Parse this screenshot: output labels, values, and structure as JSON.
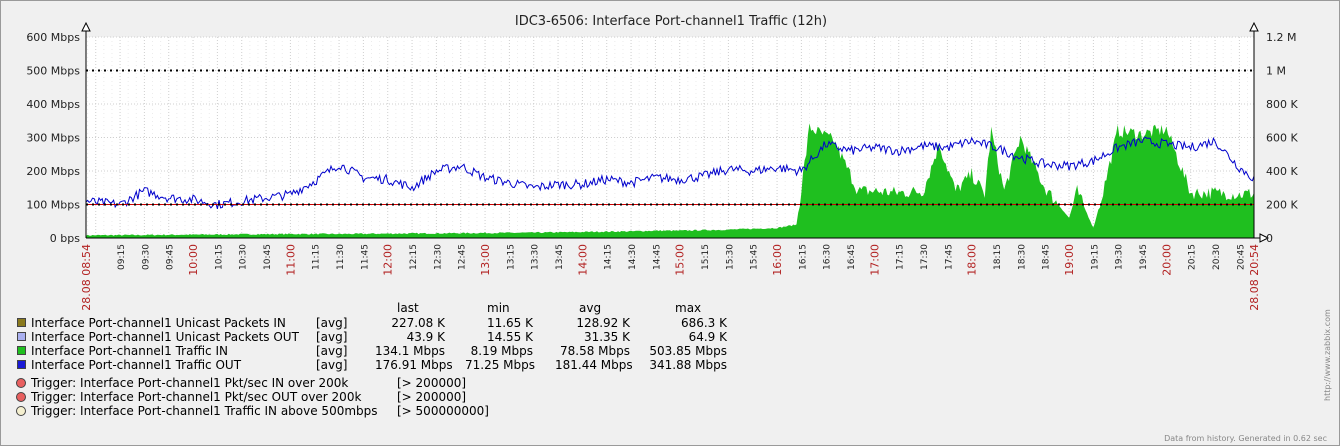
{
  "title": "IDC3-6506: Interface Port-channel1 Traffic  (12h)",
  "chart_data": {
    "type": "area",
    "title": "IDC3-6506: Interface Port-channel1 Traffic  (12h)",
    "x_start": "08-28 08:54",
    "x_end": "08-28 20:54",
    "xlabel": "",
    "ylabel": "",
    "left_axis": {
      "unit": "bps",
      "ylim": [
        0,
        600
      ],
      "ticks": [
        "0 bps",
        "100 Mbps",
        "200 Mbps",
        "300 Mbps",
        "400 Mbps",
        "500 Mbps",
        "600 Mbps"
      ]
    },
    "right_axis": {
      "unit": "packets/sec",
      "ylim": [
        0,
        1200000
      ],
      "ticks": [
        "0",
        "200 K",
        "400 K",
        "600 K",
        "800 K",
        "1 M",
        "1.2 M"
      ]
    },
    "x_tick_labels": [
      "09:15",
      "09:30",
      "09:45",
      "10:00",
      "10:15",
      "10:30",
      "10:45",
      "11:00",
      "11:15",
      "11:30",
      "11:45",
      "12:00",
      "12:15",
      "12:30",
      "12:45",
      "13:00",
      "13:15",
      "13:30",
      "13:45",
      "14:00",
      "14:15",
      "14:30",
      "14:45",
      "15:00",
      "15:15",
      "15:30",
      "15:45",
      "16:00",
      "16:15",
      "16:30",
      "16:45",
      "17:00",
      "17:15",
      "17:30",
      "17:45",
      "18:00",
      "18:15",
      "18:30",
      "18:45",
      "19:00",
      "19:15",
      "19:30",
      "19:45",
      "20:00",
      "20:15",
      "20:30",
      "20:45"
    ],
    "x_date_labels": [
      "28.08 08:54",
      "28.08 20:54"
    ],
    "series": [
      {
        "name": "Interface Port-channel1 Traffic IN",
        "color": "#1fbf1f",
        "unit": "Mbps",
        "x": [
          "08:54",
          "09:30",
          "10:00",
          "10:30",
          "11:00",
          "11:30",
          "12:00",
          "12:30",
          "13:00",
          "13:30",
          "14:00",
          "14:15",
          "14:30",
          "14:45",
          "15:00",
          "15:30",
          "16:00",
          "16:12",
          "16:20",
          "16:35",
          "16:50",
          "17:00",
          "17:15",
          "17:30",
          "17:40",
          "17:50",
          "18:00",
          "18:08",
          "18:12",
          "18:20",
          "18:30",
          "18:45",
          "19:00",
          "19:05",
          "19:15",
          "19:20",
          "19:30",
          "19:45",
          "20:00",
          "20:15",
          "20:30",
          "20:45",
          "20:54"
        ],
        "values": [
          8,
          9,
          10,
          11,
          12,
          12,
          13,
          14,
          15,
          16,
          18,
          19,
          20,
          22,
          22,
          25,
          30,
          40,
          330,
          290,
          140,
          140,
          135,
          140,
          280,
          140,
          190,
          130,
          320,
          140,
          300,
          150,
          60,
          140,
          30,
          120,
          320,
          310,
          325,
          135,
          135,
          130,
          134
        ]
      },
      {
        "name": "Interface Port-channel1 Traffic OUT",
        "color": "#0000cc",
        "unit": "Mbps",
        "x": [
          "08:54",
          "09:15",
          "09:30",
          "09:45",
          "10:00",
          "10:15",
          "10:30",
          "10:45",
          "11:00",
          "11:15",
          "11:30",
          "11:45",
          "12:00",
          "12:15",
          "12:30",
          "12:45",
          "13:00",
          "13:15",
          "13:30",
          "13:45",
          "14:00",
          "14:15",
          "14:30",
          "14:45",
          "15:00",
          "15:15",
          "15:30",
          "15:45",
          "16:00",
          "16:15",
          "16:30",
          "16:45",
          "17:00",
          "17:15",
          "17:30",
          "17:45",
          "18:00",
          "18:15",
          "18:30",
          "18:45",
          "19:00",
          "19:15",
          "19:30",
          "19:45",
          "20:00",
          "20:15",
          "20:30",
          "20:45",
          "20:54"
        ],
        "values": [
          110,
          100,
          140,
          120,
          115,
          100,
          110,
          120,
          130,
          170,
          220,
          180,
          175,
          150,
          200,
          215,
          180,
          165,
          150,
          160,
          160,
          175,
          165,
          180,
          175,
          185,
          205,
          200,
          210,
          200,
          280,
          260,
          270,
          260,
          275,
          270,
          290,
          270,
          240,
          220,
          215,
          230,
          270,
          290,
          280,
          270,
          290,
          210,
          177
        ]
      }
    ],
    "trigger_lines": [
      {
        "label": "Trigger: Interface Port-channel1 Traffic IN above 500mbps",
        "value_mbps": 500,
        "color": "#000000",
        "style": "dotted"
      },
      {
        "label": "Trigger: Interface Port-channel1 Pkt/sec IN over 200k",
        "value_pps": 200000,
        "color": "#000000",
        "style": "dotted"
      }
    ],
    "grid": true
  },
  "legend": {
    "headers": {
      "last": "last",
      "min": "min",
      "avg": "avg",
      "max": "max"
    },
    "items": [
      {
        "name": "Interface Port-channel1 Unicast Packets IN",
        "agg": "[avg]",
        "color": "#8a7a1e",
        "last": "227.08 K",
        "min": "11.65 K",
        "avg": "128.92 K",
        "max": "686.3 K"
      },
      {
        "name": "Interface Port-channel1 Unicast Packets OUT",
        "agg": "[avg]",
        "color": "#aab0f0",
        "last": "43.9 K",
        "min": "14.55 K",
        "avg": "31.35 K",
        "max": "64.9 K"
      },
      {
        "name": "Interface Port-channel1 Traffic IN",
        "agg": "[avg]",
        "color": "#1fbf1f",
        "last": "134.1 Mbps",
        "min": "8.19 Mbps",
        "avg": "78.58 Mbps",
        "max": "503.85 Mbps"
      },
      {
        "name": "Interface Port-channel1 Traffic OUT",
        "agg": "[avg]",
        "color": "#1a1ad6",
        "last": "176.91 Mbps",
        "min": "71.25 Mbps",
        "avg": "181.44 Mbps",
        "max": "341.88 Mbps"
      }
    ],
    "triggers": [
      {
        "label": "Trigger: Interface Port-channel1 Pkt/sec IN over 200k",
        "threshold": "[> 200000]",
        "color": "#e86060"
      },
      {
        "label": "Trigger: Interface Port-channel1 Pkt/sec OUT over 200k",
        "threshold": "[> 200000]",
        "color": "#e86060"
      },
      {
        "label": "Trigger: Interface Port-channel1 Traffic IN above 500mbps",
        "threshold": "[> 500000000]",
        "color": "#f5f0d0"
      }
    ]
  },
  "footer": "Data from history. Generated in 0.62 sec",
  "side_url": "http://www.zabbix.com"
}
